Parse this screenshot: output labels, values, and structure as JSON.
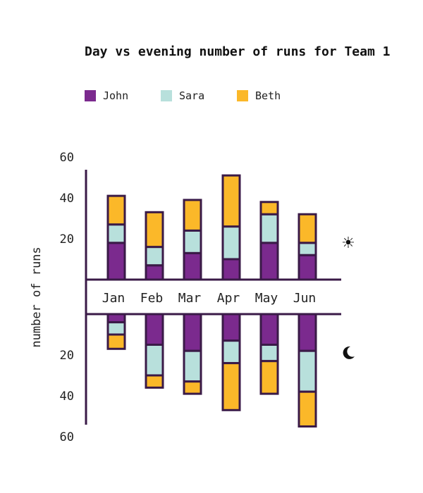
{
  "chart_data": {
    "type": "bar",
    "stacked": true,
    "diverging": true,
    "title": "Day vs evening number of runs for Team 1",
    "ylabel": "number of runs",
    "categories": [
      "Jan",
      "Feb",
      "Mar",
      "Apr",
      "May",
      "Jun"
    ],
    "yticks": [
      20,
      40,
      60
    ],
    "ylim": [
      0,
      65
    ],
    "legend": [
      "John",
      "Sara",
      "Beth"
    ],
    "legend_position": "top-left",
    "colors": {
      "John": "#7b2a8e",
      "Sara": "#b8e0dc",
      "Beth": "#fbb829",
      "outline": "#3a1a47"
    },
    "groups": [
      {
        "name": "day",
        "icon": "sun-icon",
        "glyph": "☀",
        "series": [
          {
            "name": "John",
            "values": [
              18,
              7,
              13,
              10,
              18,
              12
            ]
          },
          {
            "name": "Sara",
            "values": [
              9,
              9,
              11,
              16,
              14,
              6
            ]
          },
          {
            "name": "Beth",
            "values": [
              14,
              17,
              15,
              25,
              6,
              14
            ]
          }
        ]
      },
      {
        "name": "evening",
        "icon": "moon-icon",
        "glyph": "☾",
        "series": [
          {
            "name": "John",
            "values": [
              4,
              15,
              18,
              13,
              15,
              18
            ]
          },
          {
            "name": "Sara",
            "values": [
              6,
              15,
              15,
              11,
              8,
              20
            ]
          },
          {
            "name": "Beth",
            "values": [
              7,
              6,
              6,
              23,
              16,
              17
            ]
          }
        ]
      }
    ]
  }
}
